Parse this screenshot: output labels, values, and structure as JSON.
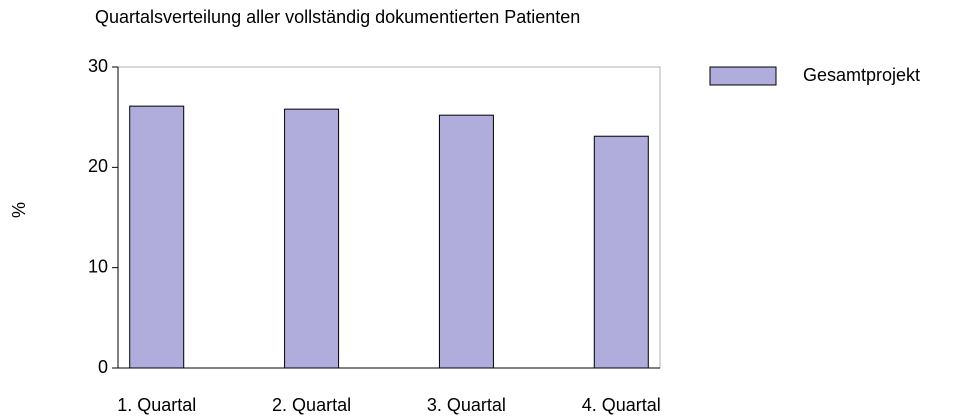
{
  "chart_data": {
    "type": "bar",
    "title": "Quartalsverteilung aller vollständig dokumentierten Patienten",
    "y_label": "%",
    "categories": [
      "1. Quartal",
      "2. Quartal",
      "3. Quartal",
      "4. Quartal"
    ],
    "series": [
      {
        "name": "Gesamtprojekt",
        "color": "#b0acdc",
        "values": [
          26.1,
          25.8,
          25.2,
          23.1
        ]
      }
    ],
    "ylim": [
      0,
      30
    ],
    "yticks": [
      0,
      10,
      20,
      30
    ],
    "grid": false,
    "legend": "right"
  }
}
